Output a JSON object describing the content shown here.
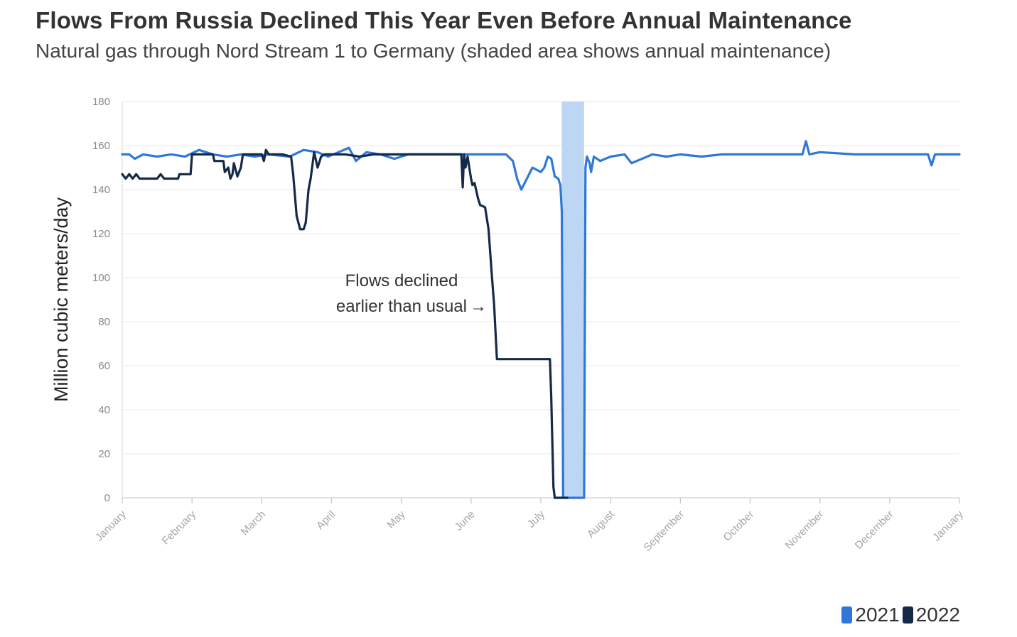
{
  "header": {
    "title": "Flows From Russia Declined This Year Even Before Annual Maintenance",
    "subtitle": "Natural gas through Nord Stream 1 to Germany (shaded area shows annual maintenance)"
  },
  "colors": {
    "series_2021": "#2f78d8",
    "series_2022": "#142a47",
    "maintenance_band": "#bcd6f3",
    "grid": "#ececec"
  },
  "chart_data": {
    "type": "line",
    "ylabel": "Million cubic meters/day",
    "ylim": [
      0,
      180
    ],
    "yticks": [
      0,
      20,
      40,
      60,
      80,
      100,
      120,
      140,
      160,
      180
    ],
    "xlim": [
      0,
      12
    ],
    "xtick_labels": [
      "January",
      "February",
      "March",
      "April",
      "May",
      "June",
      "July",
      "August",
      "September",
      "October",
      "November",
      "December",
      "January"
    ],
    "grid": true,
    "legend_position": "bottom-right",
    "maintenance_shading": {
      "x_start": 6.3,
      "x_end": 6.62
    },
    "annotation": {
      "line1": "Flows declined",
      "line2": "earlier than usual",
      "arrow": "→"
    },
    "series": [
      {
        "name": "2021",
        "points": [
          [
            0,
            156
          ],
          [
            0.1,
            156
          ],
          [
            0.18,
            154
          ],
          [
            0.3,
            156
          ],
          [
            0.5,
            155
          ],
          [
            0.7,
            156
          ],
          [
            0.9,
            155
          ],
          [
            1.1,
            158
          ],
          [
            1.3,
            156
          ],
          [
            1.5,
            155
          ],
          [
            1.7,
            156
          ],
          [
            1.9,
            155
          ],
          [
            2.1,
            156
          ],
          [
            2.4,
            155
          ],
          [
            2.6,
            158
          ],
          [
            2.8,
            157
          ],
          [
            2.95,
            155
          ],
          [
            3.1,
            157
          ],
          [
            3.25,
            159
          ],
          [
            3.35,
            153
          ],
          [
            3.5,
            157
          ],
          [
            3.7,
            156
          ],
          [
            3.9,
            154
          ],
          [
            4.1,
            156
          ],
          [
            4.5,
            156
          ],
          [
            5.0,
            156
          ],
          [
            5.3,
            156
          ],
          [
            5.5,
            156
          ],
          [
            5.6,
            153
          ],
          [
            5.66,
            145
          ],
          [
            5.72,
            140
          ],
          [
            5.8,
            145
          ],
          [
            5.88,
            150
          ],
          [
            6.0,
            148
          ],
          [
            6.05,
            150
          ],
          [
            6.1,
            155
          ],
          [
            6.15,
            154
          ],
          [
            6.2,
            146
          ],
          [
            6.25,
            145
          ],
          [
            6.28,
            142
          ],
          [
            6.3,
            130
          ],
          [
            6.32,
            0
          ],
          [
            6.62,
            0
          ],
          [
            6.64,
            150
          ],
          [
            6.66,
            155
          ],
          [
            6.7,
            152
          ],
          [
            6.72,
            148
          ],
          [
            6.76,
            155
          ],
          [
            6.85,
            153
          ],
          [
            7.0,
            155
          ],
          [
            7.2,
            156
          ],
          [
            7.3,
            152
          ],
          [
            7.45,
            154
          ],
          [
            7.6,
            156
          ],
          [
            7.8,
            155
          ],
          [
            8.0,
            156
          ],
          [
            8.3,
            155
          ],
          [
            8.6,
            156
          ],
          [
            9.0,
            156
          ],
          [
            9.5,
            156
          ],
          [
            9.75,
            156
          ],
          [
            9.8,
            162
          ],
          [
            9.85,
            156
          ],
          [
            10.0,
            157
          ],
          [
            10.5,
            156
          ],
          [
            11.0,
            156
          ],
          [
            11.3,
            156
          ],
          [
            11.55,
            156
          ],
          [
            11.6,
            151
          ],
          [
            11.65,
            156
          ],
          [
            11.75,
            156
          ],
          [
            12.0,
            156
          ]
        ]
      },
      {
        "name": "2022",
        "points": [
          [
            0,
            147
          ],
          [
            0.05,
            145
          ],
          [
            0.1,
            147
          ],
          [
            0.15,
            145
          ],
          [
            0.2,
            147
          ],
          [
            0.25,
            145
          ],
          [
            0.5,
            145
          ],
          [
            0.55,
            147
          ],
          [
            0.6,
            145
          ],
          [
            0.8,
            145
          ],
          [
            0.82,
            147
          ],
          [
            0.98,
            147
          ],
          [
            1.0,
            156
          ],
          [
            1.15,
            156
          ],
          [
            1.3,
            156
          ],
          [
            1.32,
            153
          ],
          [
            1.45,
            153
          ],
          [
            1.47,
            148
          ],
          [
            1.52,
            150
          ],
          [
            1.55,
            145
          ],
          [
            1.58,
            147
          ],
          [
            1.6,
            152
          ],
          [
            1.65,
            146
          ],
          [
            1.7,
            150
          ],
          [
            1.73,
            156
          ],
          [
            1.85,
            156
          ],
          [
            2.0,
            156
          ],
          [
            2.03,
            153
          ],
          [
            2.06,
            158
          ],
          [
            2.1,
            156
          ],
          [
            2.3,
            156
          ],
          [
            2.42,
            155
          ],
          [
            2.45,
            147
          ],
          [
            2.5,
            128
          ],
          [
            2.55,
            122
          ],
          [
            2.6,
            122
          ],
          [
            2.63,
            125
          ],
          [
            2.67,
            140
          ],
          [
            2.7,
            145
          ],
          [
            2.75,
            157
          ],
          [
            2.8,
            150
          ],
          [
            2.85,
            155
          ],
          [
            2.9,
            156
          ],
          [
            3.2,
            156
          ],
          [
            3.4,
            155
          ],
          [
            3.6,
            156
          ],
          [
            4.0,
            156
          ],
          [
            4.5,
            156
          ],
          [
            4.86,
            156
          ],
          [
            4.88,
            141
          ],
          [
            4.9,
            156
          ],
          [
            4.92,
            150
          ],
          [
            4.95,
            155
          ],
          [
            5.0,
            145
          ],
          [
            5.02,
            142
          ],
          [
            5.05,
            143
          ],
          [
            5.1,
            136
          ],
          [
            5.13,
            133
          ],
          [
            5.2,
            132
          ],
          [
            5.25,
            122
          ],
          [
            5.3,
            100
          ],
          [
            5.33,
            88
          ],
          [
            5.37,
            63
          ],
          [
            5.5,
            63
          ],
          [
            5.8,
            63
          ],
          [
            5.95,
            63
          ],
          [
            6.0,
            63
          ],
          [
            6.05,
            63
          ],
          [
            6.1,
            63
          ],
          [
            6.13,
            63
          ],
          [
            6.15,
            45
          ],
          [
            6.18,
            5
          ],
          [
            6.2,
            0
          ],
          [
            6.38,
            0
          ]
        ]
      }
    ]
  }
}
